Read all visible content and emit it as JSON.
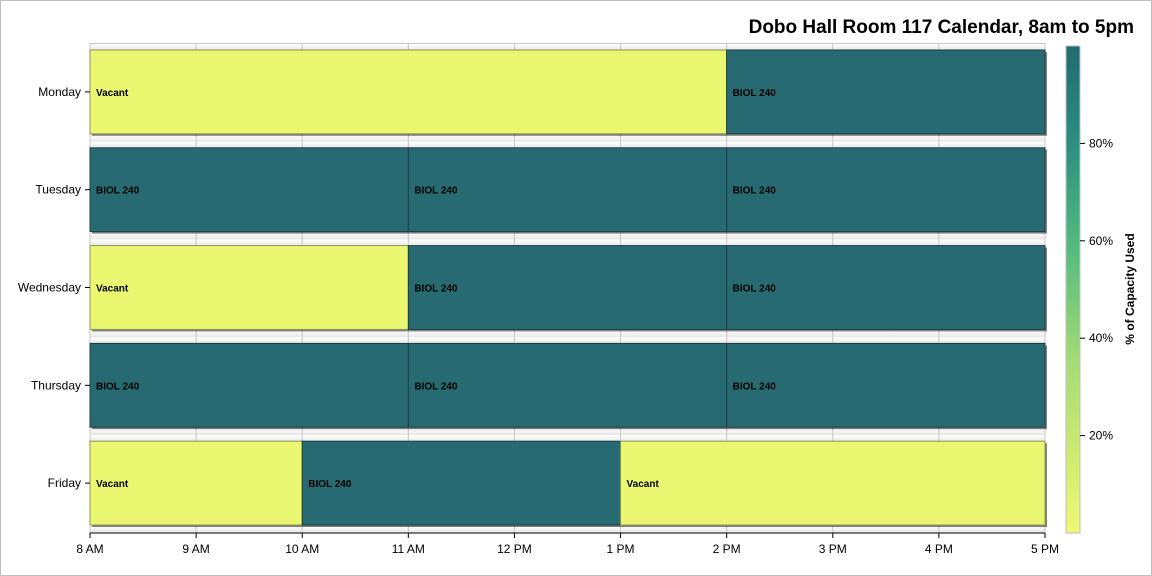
{
  "chart_data": {
    "type": "bar",
    "subtype": "gantt-calendar",
    "title": "Dobo Hall Room 117 Calendar, 8am to 5pm",
    "days": [
      "Monday",
      "Tuesday",
      "Wednesday",
      "Thursday",
      "Friday"
    ],
    "x_ticks": [
      "8 AM",
      "9 AM",
      "10 AM",
      "11 AM",
      "12 PM",
      "1 PM",
      "2 PM",
      "3 PM",
      "4 PM",
      "5 PM"
    ],
    "x_range_hours": [
      8,
      17
    ],
    "bookings": [
      {
        "day": "Monday",
        "start": 8,
        "end": 14,
        "label": "Vacant",
        "capacity_pct": 0
      },
      {
        "day": "Monday",
        "start": 14,
        "end": 17,
        "label": "BIOL 240",
        "capacity_pct": 100
      },
      {
        "day": "Tuesday",
        "start": 8,
        "end": 11,
        "label": "BIOL 240",
        "capacity_pct": 100
      },
      {
        "day": "Tuesday",
        "start": 11,
        "end": 14,
        "label": "BIOL 240",
        "capacity_pct": 100
      },
      {
        "day": "Tuesday",
        "start": 14,
        "end": 17,
        "label": "BIOL 240",
        "capacity_pct": 100
      },
      {
        "day": "Wednesday",
        "start": 8,
        "end": 11,
        "label": "Vacant",
        "capacity_pct": 0
      },
      {
        "day": "Wednesday",
        "start": 11,
        "end": 14,
        "label": "BIOL 240",
        "capacity_pct": 100
      },
      {
        "day": "Wednesday",
        "start": 14,
        "end": 17,
        "label": "BIOL 240",
        "capacity_pct": 100
      },
      {
        "day": "Thursday",
        "start": 8,
        "end": 11,
        "label": "BIOL 240",
        "capacity_pct": 100
      },
      {
        "day": "Thursday",
        "start": 11,
        "end": 14,
        "label": "BIOL 240",
        "capacity_pct": 100
      },
      {
        "day": "Thursday",
        "start": 14,
        "end": 17,
        "label": "BIOL 240",
        "capacity_pct": 100
      },
      {
        "day": "Friday",
        "start": 8,
        "end": 10,
        "label": "Vacant",
        "capacity_pct": 0
      },
      {
        "day": "Friday",
        "start": 10,
        "end": 13,
        "label": "BIOL 240",
        "capacity_pct": 100
      },
      {
        "day": "Friday",
        "start": 13,
        "end": 17,
        "label": "Vacant",
        "capacity_pct": 0
      }
    ],
    "colorbar": {
      "label": "% of Capacity Used",
      "ticks": [
        {
          "value": 20,
          "label": "20%"
        },
        {
          "value": 40,
          "label": "40%"
        },
        {
          "value": 60,
          "label": "60%"
        },
        {
          "value": 80,
          "label": "80%"
        }
      ],
      "range": [
        0,
        100
      ],
      "colors": [
        "#f0f871",
        "#7fd376",
        "#2ea383",
        "#226a72"
      ]
    },
    "grid": true,
    "colors": {
      "occupied": "#276a72",
      "vacant": "#eaf771",
      "grid": "#c8c8c8"
    }
  }
}
